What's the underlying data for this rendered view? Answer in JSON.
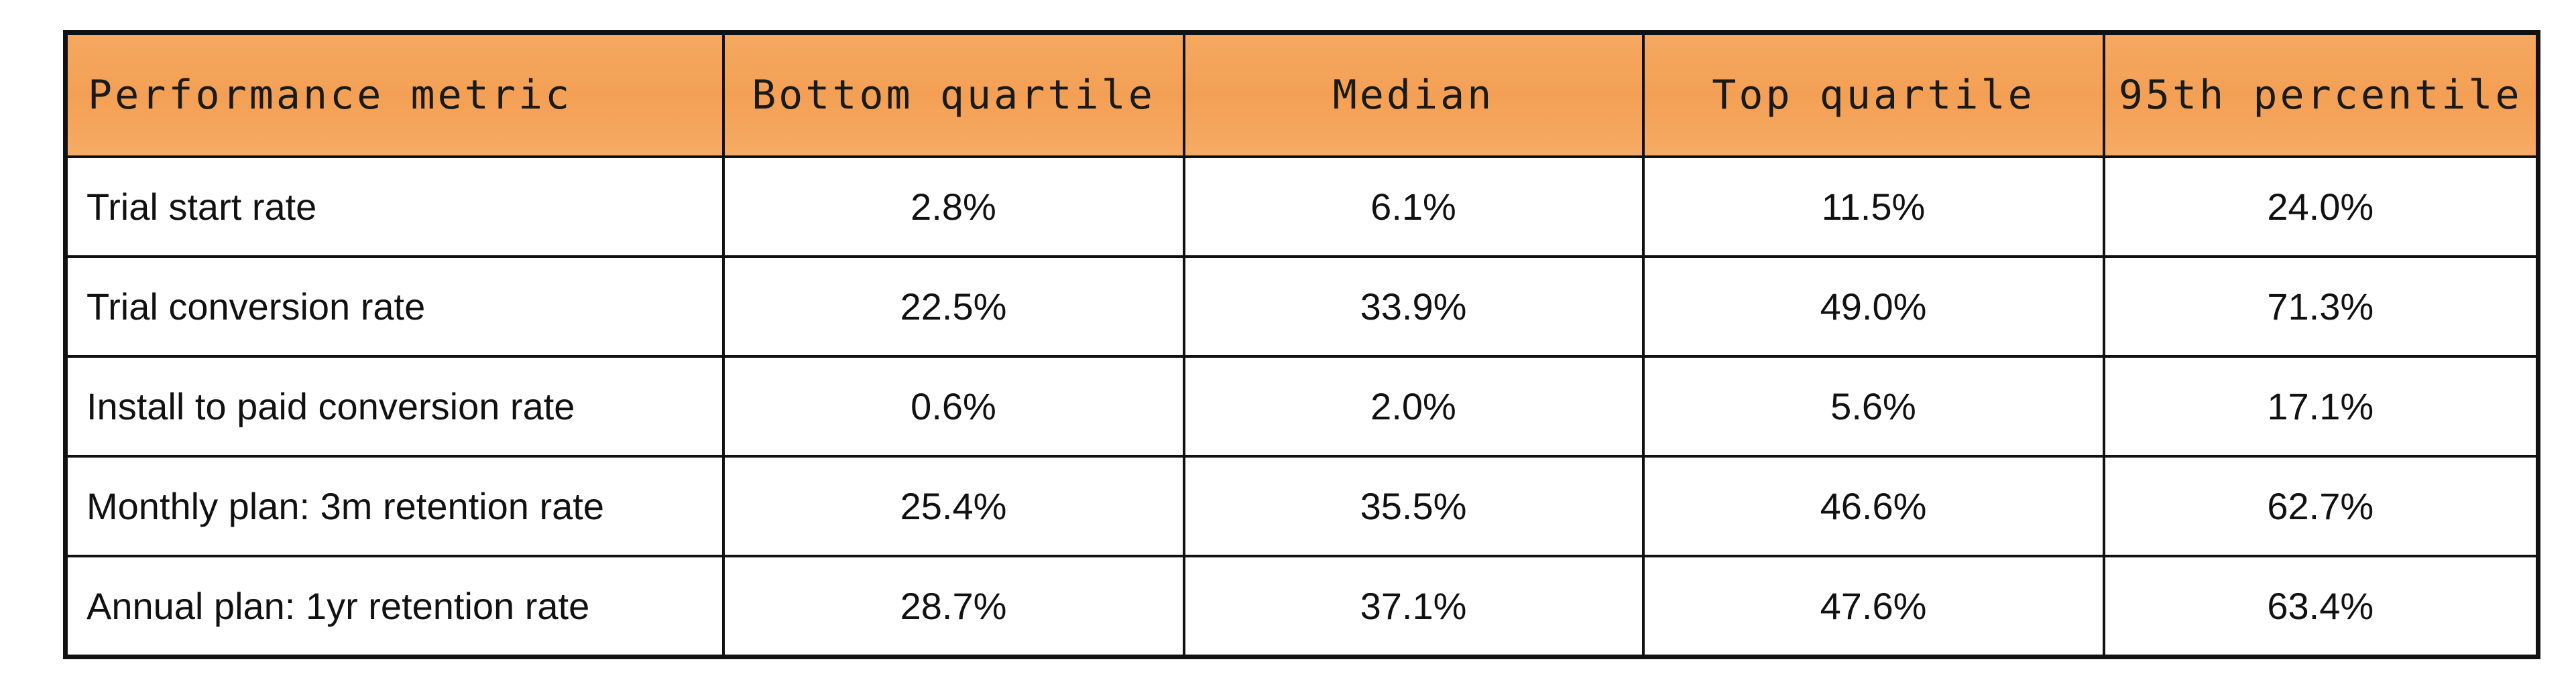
{
  "table": {
    "header": [
      "Performance metric",
      "Bottom quartile",
      "Median",
      "Top quartile",
      "95th percentile"
    ],
    "rows": [
      [
        "Trial start rate",
        "2.8%",
        "6.1%",
        "11.5%",
        "24.0%"
      ],
      [
        "Trial conversion rate",
        "22.5%",
        "33.9%",
        "49.0%",
        "71.3%"
      ],
      [
        "Install to paid conversion rate",
        "0.6%",
        "2.0%",
        "5.6%",
        "17.1%"
      ],
      [
        "Monthly plan: 3m retention rate",
        "25.4%",
        "35.5%",
        "46.6%",
        "62.7%"
      ],
      [
        "Annual plan: 1yr retention rate",
        "28.7%",
        "37.1%",
        "47.6%",
        "63.4%"
      ]
    ]
  }
}
